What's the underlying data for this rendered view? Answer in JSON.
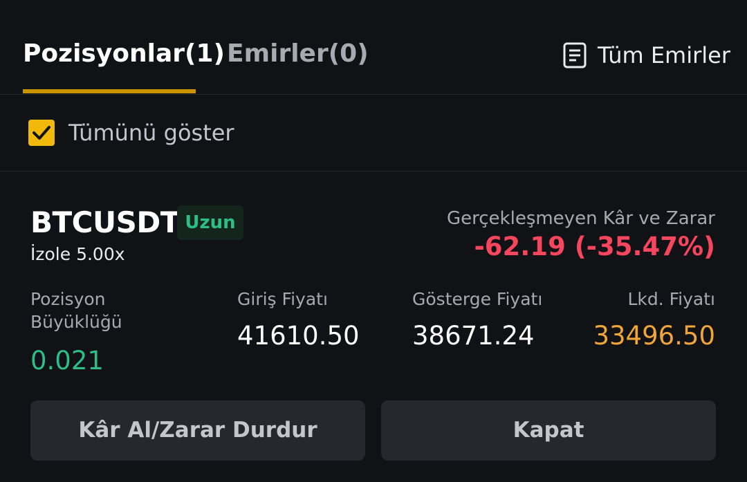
{
  "tabs": {
    "positions_label": "Pozisyonlar(1)",
    "orders_label": "Emirler(0)",
    "all_orders_label": "Tüm Emirler",
    "all_orders_icon": "document-icon"
  },
  "filter": {
    "show_all_label": "Tümünü göster",
    "show_all_checked": true
  },
  "position": {
    "symbol": "BTCUSDT",
    "side_label": "Uzun",
    "margin_mode": "İzole 5.00x",
    "unrealized_pnl_label": "Gerçekleşmeyen Kâr ve Zarar",
    "unrealized_pnl_value": "-62.19 (-35.47%)",
    "size_label": "Pozisyon Büyüklüğü",
    "size_value": "0.021",
    "entry_price_label": "Giriş Fiyatı",
    "entry_price_value": "41610.50",
    "mark_price_label": "Gösterge Fiyatı",
    "mark_price_value": "38671.24",
    "liq_price_label": "Lkd. Fiyatı",
    "liq_price_value": "33496.50"
  },
  "actions": {
    "tpsl_label": "Kâr Al/Zarar Durdur",
    "close_label": "Kapat"
  },
  "colors": {
    "accent": "#f0b90b",
    "positive": "#2ebd85",
    "negative": "#f6465d",
    "liquidation": "#f0a53b",
    "background": "#111216"
  }
}
